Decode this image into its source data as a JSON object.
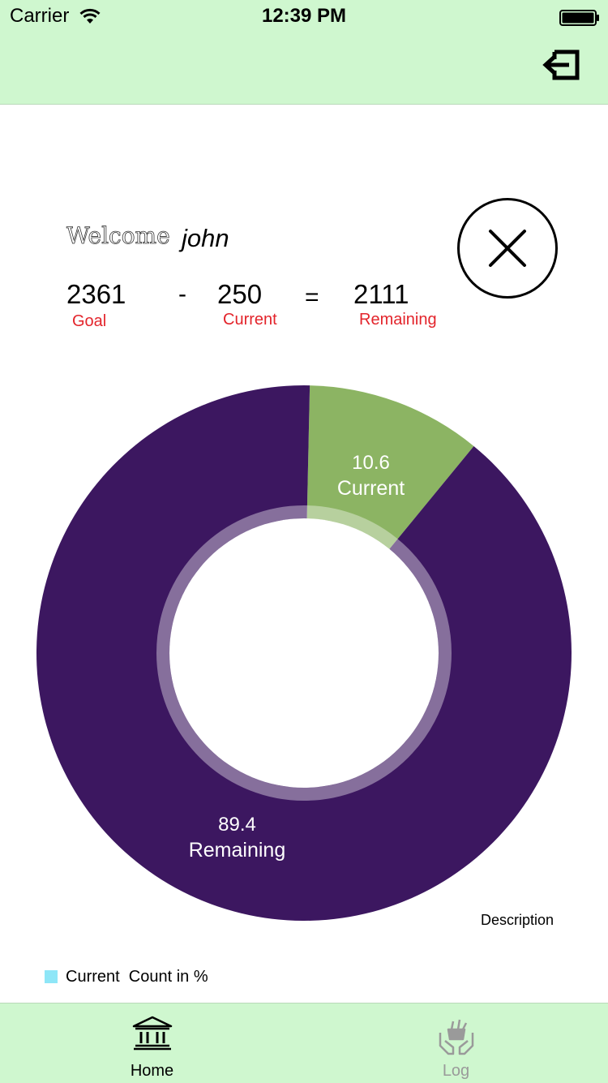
{
  "status_bar": {
    "carrier": "Carrier",
    "time": "12:39 PM",
    "wifi_icon": "wifi-icon",
    "battery_icon": "battery-icon"
  },
  "nav_bar": {
    "logout_icon": "logout-icon"
  },
  "welcome": {
    "prefix": "Welcome",
    "user_name": "john"
  },
  "summary": {
    "goal_value": "2361",
    "goal_label": "Goal",
    "minus": "-",
    "current_value": "250",
    "current_label": "Current",
    "equals": "=",
    "remaining_value": "2111",
    "remaining_label": "Remaining",
    "close_icon": "close-icon"
  },
  "chart_data": {
    "type": "pie",
    "categories": [
      "Current",
      "Remaining"
    ],
    "values": [
      10.6,
      89.4
    ],
    "value_labels": [
      "10.6",
      "89.4"
    ],
    "colors": [
      "#8cb463",
      "#3c1760"
    ],
    "donut": true,
    "description": "Description",
    "legend": {
      "position": "bottom-left",
      "entries": [
        {
          "label": "Current  Count in %",
          "color": "#8ee6f7"
        }
      ]
    }
  },
  "tab_bar": {
    "tabs": [
      {
        "label": "Home",
        "icon": "bank-icon",
        "selected": true
      },
      {
        "label": "Log",
        "icon": "hands-basket-icon",
        "selected": false
      }
    ]
  },
  "colors": {
    "bar_background": "#cff7cf",
    "label_red": "#e3242b"
  }
}
